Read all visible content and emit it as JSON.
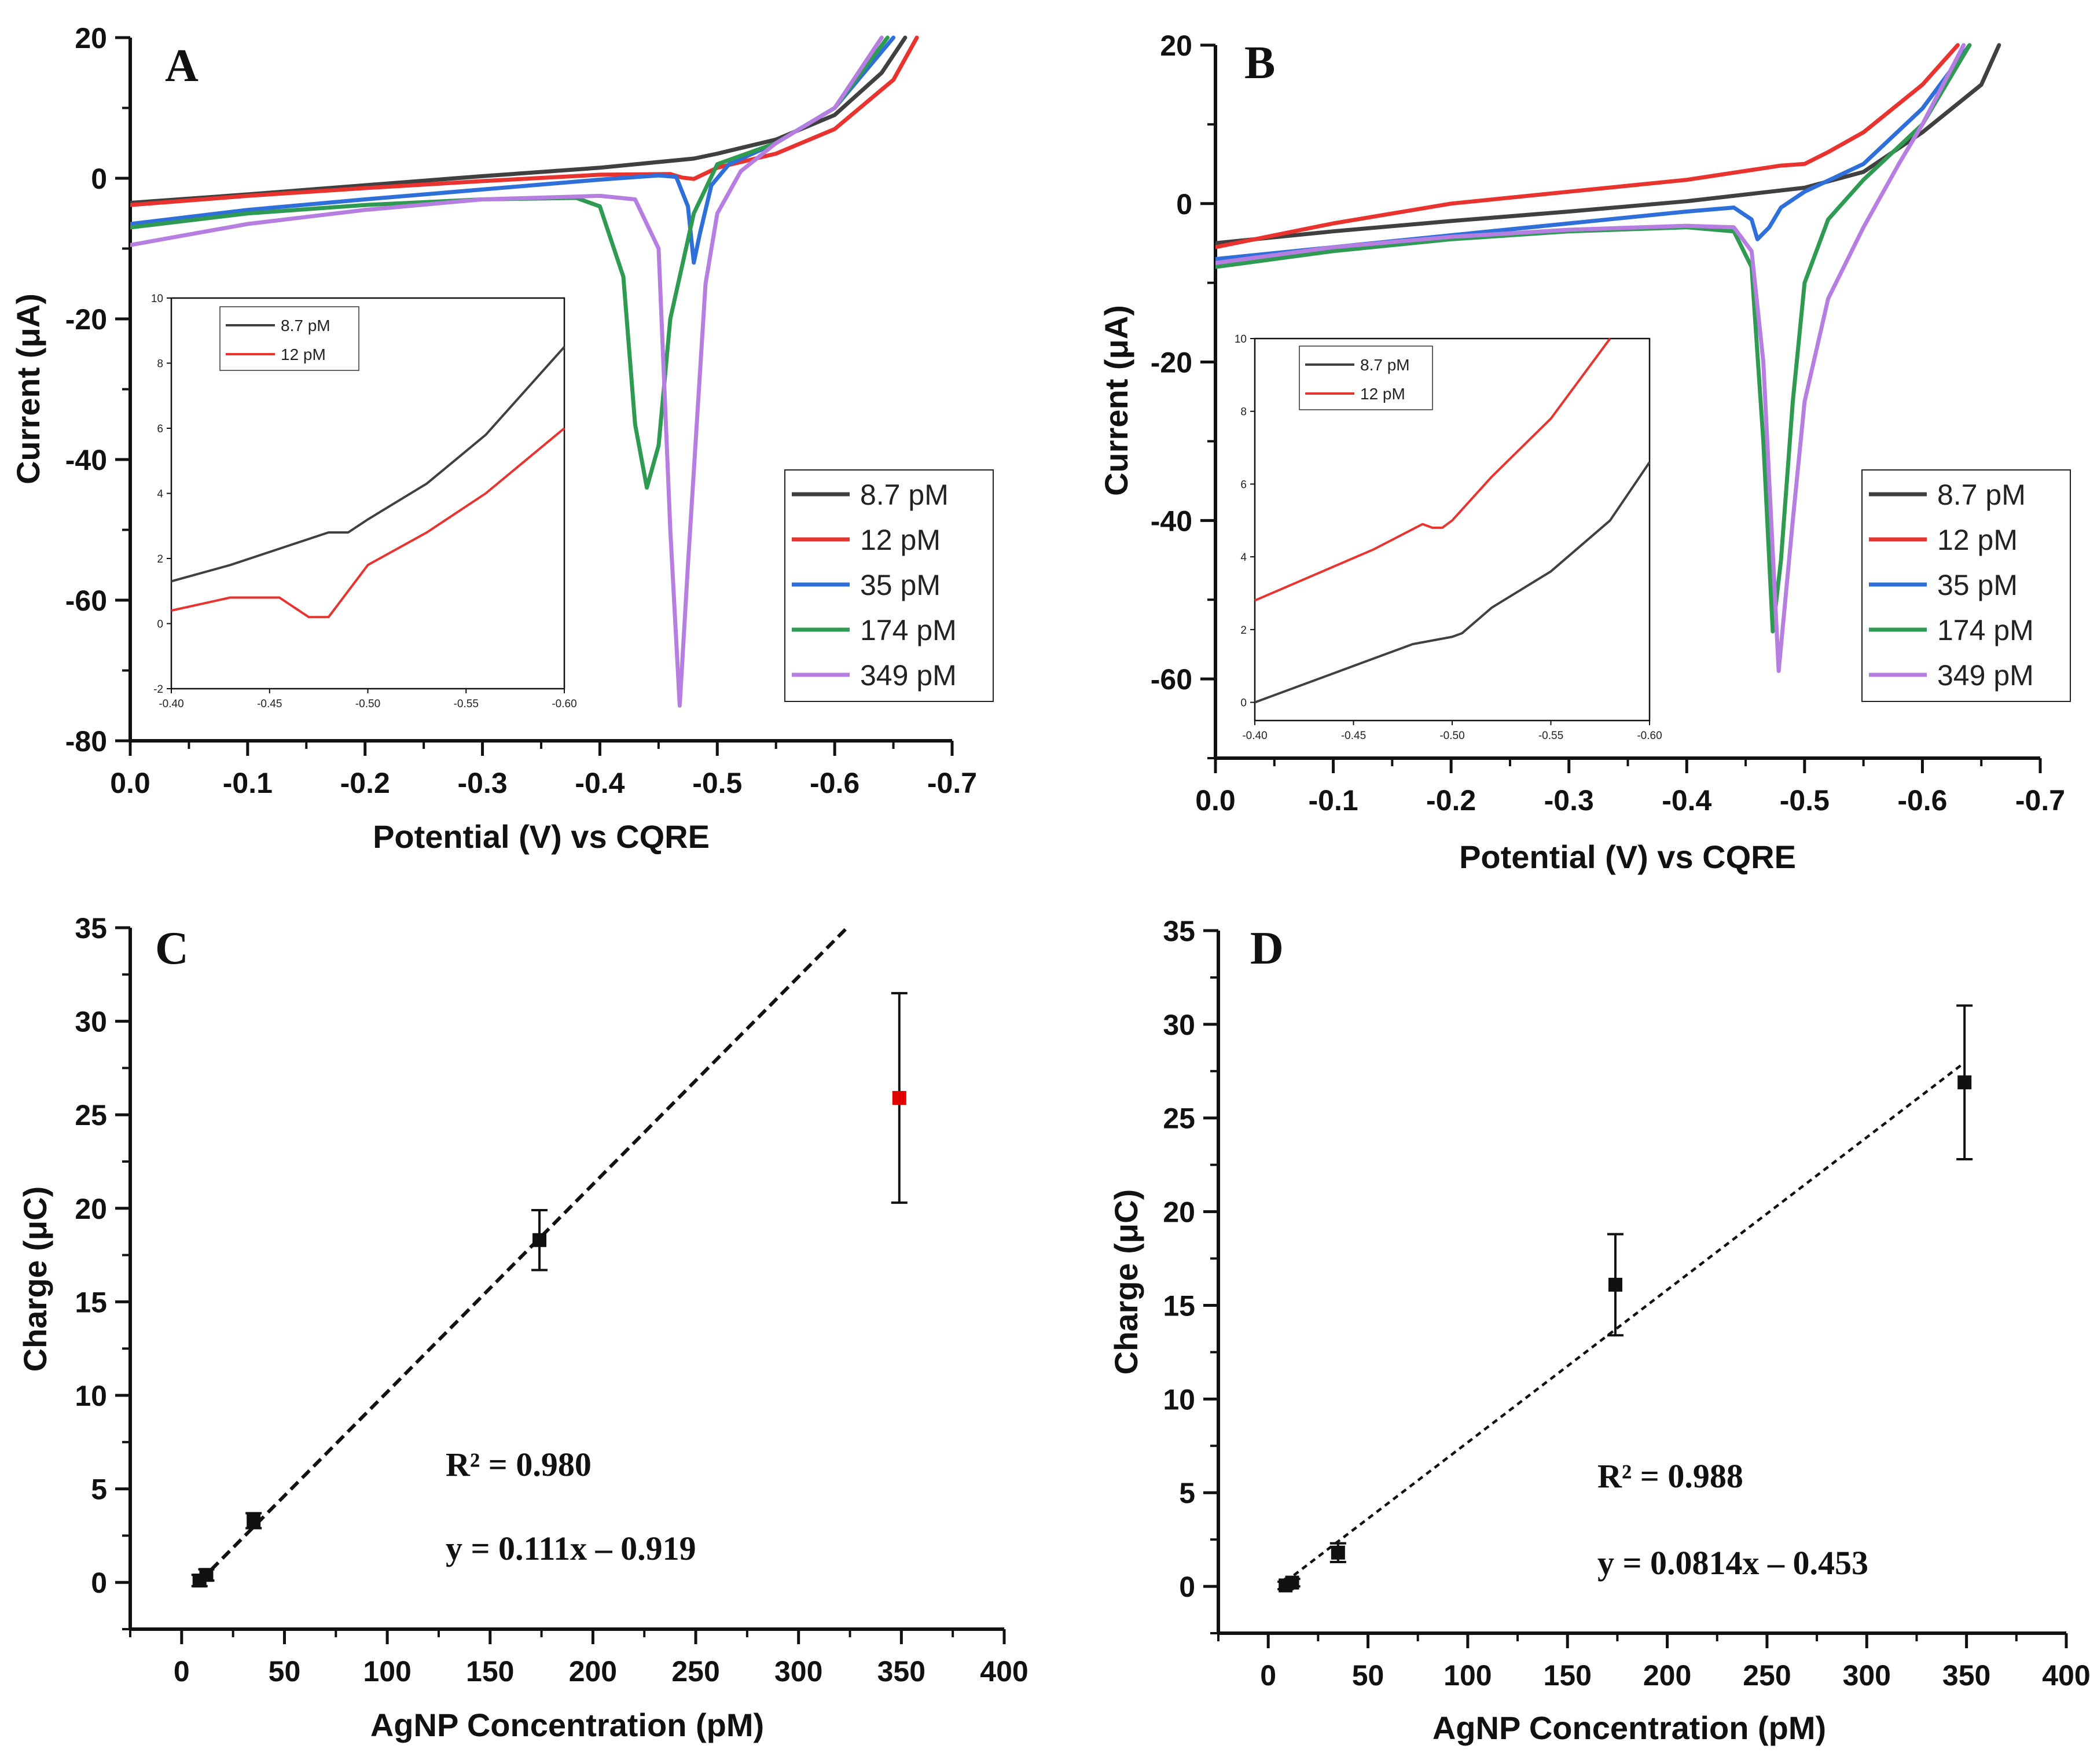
{
  "chart_data": [
    {
      "panel": "A",
      "type": "line",
      "xlabel": "Potential (V) vs CQRE",
      "ylabel": "Current (μA)",
      "xlim": [
        0.0,
        -0.7
      ],
      "ylim": [
        -80,
        20
      ],
      "xticks": [
        "0.0",
        "-0.1",
        "-0.2",
        "-0.3",
        "-0.4",
        "-0.5",
        "-0.6",
        "-0.7"
      ],
      "yticks": [
        "20",
        "0",
        "-20",
        "-40",
        "-60",
        "-80"
      ],
      "series": [
        {
          "name": "8.7 pM",
          "color": "#404040",
          "x": [
            0,
            -0.1,
            -0.2,
            -0.3,
            -0.4,
            -0.48,
            -0.5,
            -0.55,
            -0.6,
            -0.64,
            -0.66
          ],
          "y": [
            -3.5,
            -2.3,
            -1.0,
            0.3,
            1.5,
            2.8,
            3.5,
            5.5,
            9,
            15,
            20
          ]
        },
        {
          "name": "12 pM",
          "color": "#e8332e",
          "x": [
            0,
            -0.1,
            -0.2,
            -0.3,
            -0.4,
            -0.46,
            -0.47,
            -0.48,
            -0.5,
            -0.55,
            -0.6,
            -0.65,
            -0.67
          ],
          "y": [
            -3.8,
            -2.5,
            -1.4,
            -0.4,
            0.5,
            0.6,
            0.1,
            -0.1,
            1.5,
            3.5,
            7,
            14,
            20
          ]
        },
        {
          "name": "35 pM",
          "color": "#2e6fd9",
          "x": [
            0,
            -0.1,
            -0.2,
            -0.3,
            -0.4,
            -0.45,
            -0.465,
            -0.475,
            -0.48,
            -0.485,
            -0.495,
            -0.51,
            -0.55,
            -0.6,
            -0.65
          ],
          "y": [
            -6.5,
            -4.5,
            -3.0,
            -1.6,
            -0.2,
            0.4,
            0.2,
            -4,
            -12,
            -8,
            -1,
            2,
            5,
            10,
            20
          ]
        },
        {
          "name": "174 pM",
          "color": "#2e9a52",
          "x": [
            0,
            -0.1,
            -0.2,
            -0.3,
            -0.38,
            -0.4,
            -0.42,
            -0.43,
            -0.44,
            -0.45,
            -0.46,
            -0.48,
            -0.5,
            -0.55,
            -0.6,
            -0.645
          ],
          "y": [
            -7,
            -5,
            -3.8,
            -3,
            -2.8,
            -4,
            -14,
            -35,
            -44,
            -38,
            -20,
            -5,
            2,
            5,
            10,
            20
          ]
        },
        {
          "name": "349 pM",
          "color": "#b57ee0",
          "x": [
            0,
            -0.1,
            -0.2,
            -0.3,
            -0.4,
            -0.43,
            -0.45,
            -0.46,
            -0.468,
            -0.475,
            -0.49,
            -0.5,
            -0.52,
            -0.55,
            -0.6,
            -0.64
          ],
          "y": [
            -9.5,
            -6.5,
            -4.5,
            -3,
            -2.5,
            -3,
            -10,
            -50,
            -75,
            -55,
            -15,
            -5,
            1,
            5,
            10,
            20
          ]
        }
      ],
      "inset": {
        "xlim": [
          -0.4,
          -0.6
        ],
        "ylim": [
          -2,
          10
        ],
        "xticks": [
          "-0.40",
          "-0.45",
          "-0.50",
          "-0.55",
          "-0.60"
        ],
        "yticks": [
          "10",
          "8",
          "6",
          "4",
          "2",
          "0",
          "-2"
        ],
        "series": [
          {
            "name": "8.7 pM",
            "color": "#404040",
            "x": [
              -0.4,
              -0.43,
              -0.46,
              -0.48,
              -0.49,
              -0.5,
              -0.53,
              -0.56,
              -0.6
            ],
            "y": [
              1.3,
              1.8,
              2.4,
              2.8,
              2.8,
              3.2,
              4.3,
              5.8,
              8.5
            ]
          },
          {
            "name": "12 pM",
            "color": "#e8332e",
            "x": [
              -0.4,
              -0.43,
              -0.44,
              -0.455,
              -0.47,
              -0.48,
              -0.5,
              -0.53,
              -0.56,
              -0.6
            ],
            "y": [
              0.4,
              0.8,
              0.8,
              0.8,
              0.2,
              0.2,
              1.8,
              2.8,
              4.0,
              6.0
            ]
          }
        ]
      },
      "legend_position": "bottom-right"
    },
    {
      "panel": "B",
      "type": "line",
      "xlabel": "Potential (V) vs CQRE",
      "ylabel": "Current (μA)",
      "xlim": [
        0.0,
        -0.7
      ],
      "ylim": [
        -70,
        20
      ],
      "xticks": [
        "0.0",
        "-0.1",
        "-0.2",
        "-0.3",
        "-0.4",
        "-0.5",
        "-0.6",
        "-0.7"
      ],
      "yticks": [
        "20",
        "0",
        "-20",
        "-40",
        "-60"
      ],
      "series": [
        {
          "name": "8.7 pM",
          "color": "#404040",
          "x": [
            0,
            -0.1,
            -0.2,
            -0.3,
            -0.4,
            -0.5,
            -0.55,
            -0.6,
            -0.65,
            -0.665
          ],
          "y": [
            -5,
            -3.5,
            -2.2,
            -1.0,
            0.3,
            2,
            4,
            9,
            15,
            20
          ]
        },
        {
          "name": "12 pM",
          "color": "#e8332e",
          "x": [
            0,
            -0.1,
            -0.2,
            -0.3,
            -0.4,
            -0.48,
            -0.5,
            -0.52,
            -0.55,
            -0.6,
            -0.63
          ],
          "y": [
            -5.5,
            -2.5,
            0,
            1.5,
            3,
            4.8,
            5,
            6.5,
            9,
            15,
            20
          ]
        },
        {
          "name": "35 pM",
          "color": "#2e6fd9",
          "x": [
            0,
            -0.1,
            -0.2,
            -0.3,
            -0.4,
            -0.44,
            -0.455,
            -0.46,
            -0.47,
            -0.48,
            -0.5,
            -0.55,
            -0.6,
            -0.64
          ],
          "y": [
            -7,
            -5.5,
            -4,
            -2.5,
            -1,
            -0.5,
            -2,
            -4.5,
            -3,
            -0.5,
            1.5,
            5,
            12,
            20
          ]
        },
        {
          "name": "174 pM",
          "color": "#2e9a52",
          "x": [
            0,
            -0.1,
            -0.2,
            -0.3,
            -0.4,
            -0.44,
            -0.455,
            -0.465,
            -0.473,
            -0.48,
            -0.49,
            -0.5,
            -0.52,
            -0.55,
            -0.6,
            -0.64
          ],
          "y": [
            -8,
            -6,
            -4.5,
            -3.5,
            -3,
            -3.5,
            -8,
            -30,
            -54,
            -45,
            -25,
            -10,
            -2,
            3,
            10,
            20
          ]
        },
        {
          "name": "349 pM",
          "color": "#b57ee0",
          "x": [
            0,
            -0.1,
            -0.2,
            -0.3,
            -0.4,
            -0.44,
            -0.455,
            -0.465,
            -0.478,
            -0.49,
            -0.5,
            -0.52,
            -0.55,
            -0.58,
            -0.6,
            -0.635
          ],
          "y": [
            -7.5,
            -5.5,
            -4.2,
            -3.3,
            -2.8,
            -3,
            -6,
            -20,
            -59,
            -40,
            -25,
            -12,
            -3,
            5,
            10,
            20
          ]
        }
      ],
      "inset": {
        "xlim": [
          -0.4,
          -0.6
        ],
        "ylim": [
          -0.5,
          10
        ],
        "xticks": [
          "-0.40",
          "-0.45",
          "-0.50",
          "-0.55",
          "-0.60"
        ],
        "yticks": [
          "10",
          "8",
          "6",
          "4",
          "2",
          "0"
        ],
        "series": [
          {
            "name": "8.7 pM",
            "color": "#404040",
            "x": [
              -0.4,
              -0.43,
              -0.46,
              -0.48,
              -0.5,
              -0.505,
              -0.52,
              -0.55,
              -0.58,
              -0.6
            ],
            "y": [
              0,
              0.6,
              1.2,
              1.6,
              1.8,
              1.9,
              2.6,
              3.6,
              5.0,
              6.6
            ]
          },
          {
            "name": "12 pM",
            "color": "#e8332e",
            "x": [
              -0.4,
              -0.43,
              -0.46,
              -0.485,
              -0.49,
              -0.495,
              -0.5,
              -0.52,
              -0.55,
              -0.58
            ],
            "y": [
              2.8,
              3.5,
              4.2,
              4.9,
              4.8,
              4.8,
              5.0,
              6.2,
              7.8,
              10.0
            ]
          }
        ]
      },
      "legend_position": "bottom-right"
    },
    {
      "panel": "C",
      "type": "scatter",
      "xlabel": "AgNP Concentration (pM)",
      "ylabel": "Charge (μC)",
      "xlim": [
        -25,
        400
      ],
      "ylim": [
        -2.5,
        35
      ],
      "xticks": [
        "0",
        "50",
        "100",
        "150",
        "200",
        "250",
        "300",
        "350",
        "400"
      ],
      "yticks": [
        "35",
        "30",
        "25",
        "20",
        "15",
        "10",
        "5",
        "0"
      ],
      "points": [
        {
          "x": 8.7,
          "y": 0.1,
          "err": 0.3,
          "color": "#111111"
        },
        {
          "x": 12,
          "y": 0.4,
          "err": 0.3,
          "color": "#111111"
        },
        {
          "x": 35,
          "y": 3.3,
          "err": 0.4,
          "color": "#111111"
        },
        {
          "x": 174,
          "y": 18.3,
          "err": 1.6,
          "color": "#111111"
        },
        {
          "x": 349,
          "y": 25.9,
          "err": 5.6,
          "color": "#e00000"
        }
      ],
      "fit": {
        "slope": 0.111,
        "intercept": -0.919,
        "x_range": [
          8.7,
          324
        ]
      },
      "r2_label": "R² = 0.980",
      "equation": "y = 0.111x – 0.919"
    },
    {
      "panel": "D",
      "type": "scatter",
      "xlabel": "AgNP Concentration (pM)",
      "ylabel": "Charge (μC)",
      "xlim": [
        -25,
        400
      ],
      "ylim": [
        -2.5,
        35
      ],
      "xticks": [
        "0",
        "50",
        "100",
        "150",
        "200",
        "250",
        "300",
        "350",
        "400"
      ],
      "yticks": [
        "35",
        "30",
        "25",
        "20",
        "15",
        "10",
        "5",
        "0"
      ],
      "points": [
        {
          "x": 8.7,
          "y": 0.05,
          "err": 0.2,
          "color": "#111111"
        },
        {
          "x": 12,
          "y": 0.2,
          "err": 0.2,
          "color": "#111111"
        },
        {
          "x": 35,
          "y": 1.8,
          "err": 0.5,
          "color": "#111111"
        },
        {
          "x": 174,
          "y": 16.1,
          "err": 2.7,
          "color": "#111111"
        },
        {
          "x": 349,
          "y": 26.9,
          "err": 4.1,
          "color": "#111111"
        }
      ],
      "fit": {
        "slope": 0.0814,
        "intercept": -0.453,
        "x_range": [
          8.7,
          349
        ]
      },
      "r2_label": "R² = 0.988",
      "equation": "y = 0.0814x – 0.453"
    }
  ]
}
